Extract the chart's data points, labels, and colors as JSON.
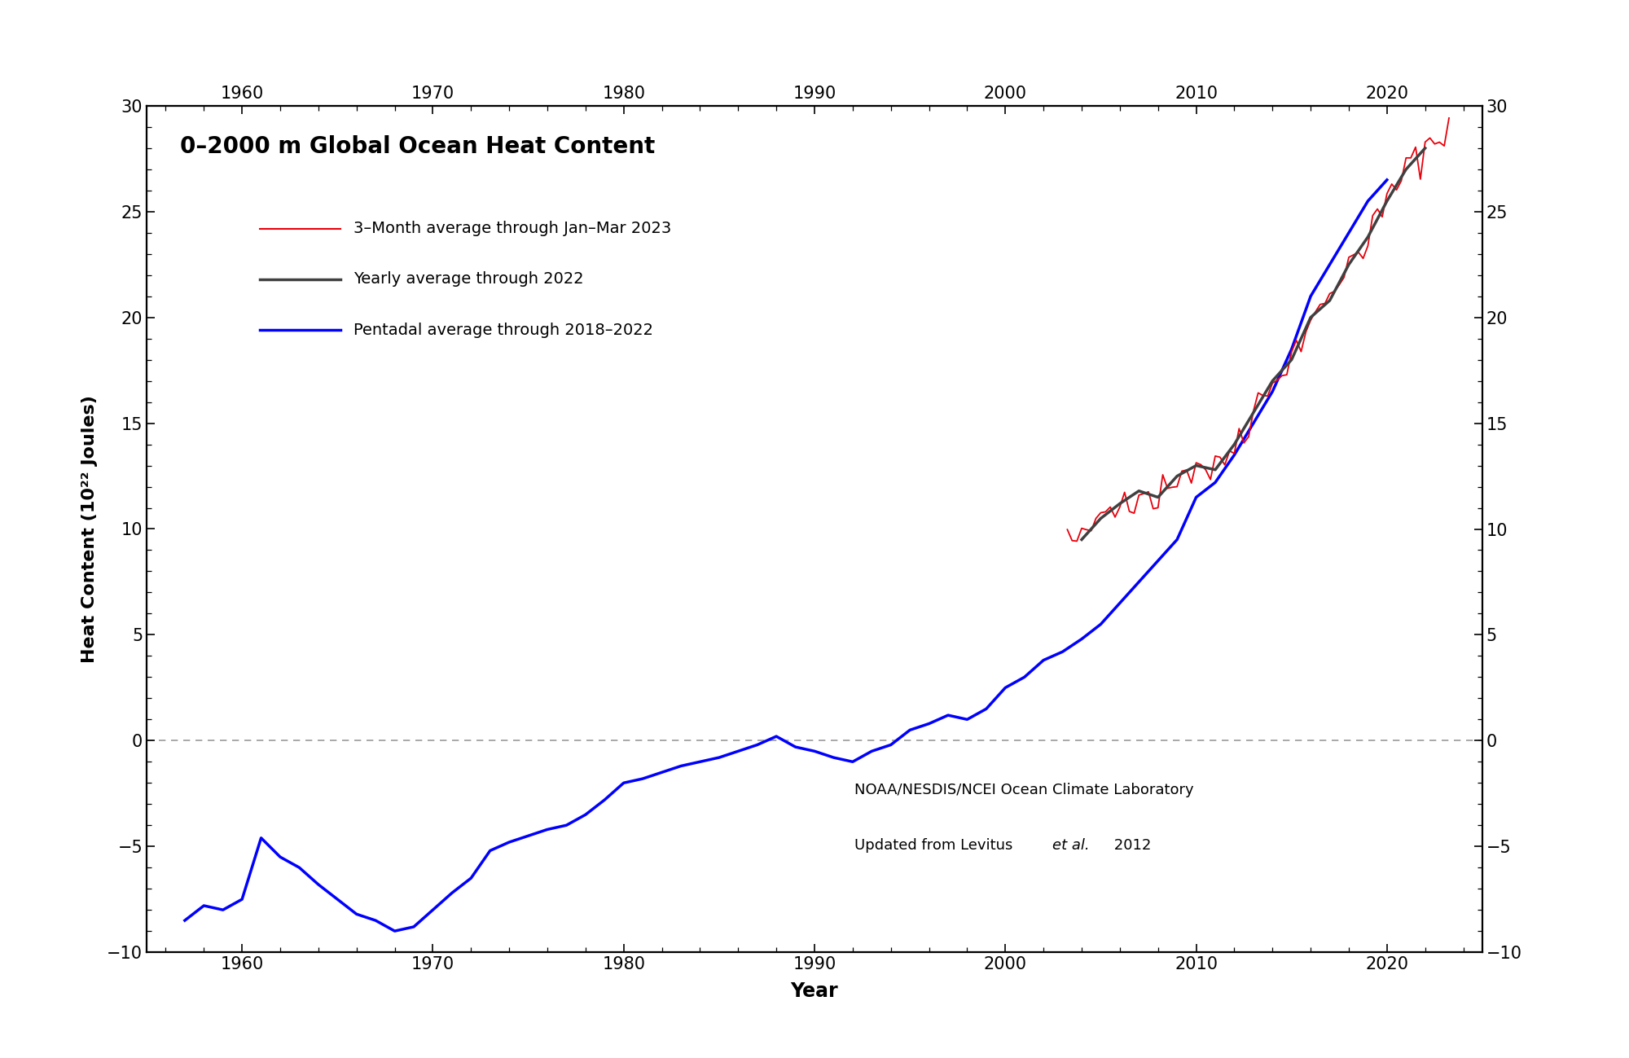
{
  "title": "0–2000 m Global Ocean Heat Content",
  "xlabel": "Year",
  "ylabel": "Heat Content (10²² Joules)",
  "ylim": [
    -10,
    30
  ],
  "xlim": [
    1955,
    2025
  ],
  "yticks": [
    -10,
    -5,
    0,
    5,
    10,
    15,
    20,
    25,
    30
  ],
  "xticks": [
    1960,
    1970,
    1980,
    1990,
    2000,
    2010,
    2020
  ],
  "legend_entries": [
    "3–Month average through Jan–Mar 2023",
    "Yearly average through 2022",
    "Pentadal average through 2018–2022"
  ],
  "legend_colors": [
    "#e8000b",
    "#555555",
    "#0000ff"
  ],
  "background_color": "#ffffff",
  "pentadal_years": [
    1957,
    1958,
    1959,
    1960,
    1961,
    1962,
    1963,
    1964,
    1965,
    1966,
    1967,
    1968,
    1969,
    1970,
    1971,
    1972,
    1973,
    1974,
    1975,
    1976,
    1977,
    1978,
    1979,
    1980,
    1981,
    1982,
    1983,
    1984,
    1985,
    1986,
    1987,
    1988,
    1989,
    1990,
    1991,
    1992,
    1993,
    1994,
    1995,
    1996,
    1997,
    1998,
    1999,
    2000,
    2001,
    2002,
    2003,
    2004,
    2005,
    2006,
    2007,
    2008,
    2009,
    2010,
    2011,
    2012,
    2013,
    2014,
    2015,
    2016,
    2017,
    2018,
    2019,
    2020
  ],
  "pentadal_values": [
    -8.5,
    -7.8,
    -8.0,
    -7.5,
    -4.6,
    -5.5,
    -6.0,
    -6.8,
    -7.5,
    -8.2,
    -8.5,
    -9.0,
    -8.8,
    -8.0,
    -7.2,
    -6.5,
    -5.2,
    -4.8,
    -4.5,
    -4.2,
    -4.0,
    -3.5,
    -2.8,
    -2.0,
    -1.8,
    -1.5,
    -1.2,
    -1.0,
    -0.8,
    -0.5,
    -0.2,
    0.2,
    -0.3,
    -0.5,
    -0.8,
    -1.0,
    -0.5,
    -0.2,
    0.5,
    0.8,
    1.2,
    1.0,
    1.5,
    2.5,
    3.0,
    3.8,
    4.2,
    4.8,
    5.5,
    6.5,
    7.5,
    8.5,
    9.5,
    11.5,
    12.2,
    13.5,
    15.0,
    16.5,
    18.5,
    21.0,
    22.5,
    24.0,
    25.5,
    26.5
  ],
  "yearly_years": [
    2004,
    2005,
    2006,
    2007,
    2008,
    2009,
    2010,
    2011,
    2012,
    2013,
    2014,
    2015,
    2016,
    2017,
    2018,
    2019,
    2020,
    2021,
    2022
  ],
  "yearly_values": [
    9.5,
    10.5,
    11.2,
    11.8,
    11.5,
    12.5,
    13.0,
    12.8,
    14.0,
    15.5,
    17.0,
    18.0,
    20.0,
    20.8,
    22.5,
    23.8,
    25.5,
    27.0,
    28.0
  ],
  "quarterly_color": "#e8000b",
  "yearly_color": "#404040",
  "pentadal_color": "#0000ff",
  "title_fontsize": 20,
  "legend_fontsize": 14,
  "tick_labelsize": 15,
  "axis_labelsize": 17,
  "annot_fontsize": 13
}
